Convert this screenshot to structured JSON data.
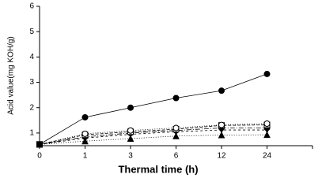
{
  "chart_data": {
    "type": "line",
    "x_label": "Thermal time (h)",
    "y_label": "Acid value(mg KOH/g)",
    "categories": [
      "0",
      "1",
      "3",
      "6",
      "12",
      "24"
    ],
    "ylim": [
      0.5,
      6
    ],
    "yticks": [
      1,
      2,
      3,
      4,
      5,
      6
    ],
    "series": [
      {
        "color": "#000000",
        "marker": "circle",
        "filled": true,
        "dash": "none",
        "values": [
          0.55,
          1.62,
          2.0,
          2.38,
          2.67,
          3.33
        ]
      },
      {
        "color": "#000000",
        "marker": "circle",
        "filled": false,
        "dash": "1,2",
        "values": [
          0.55,
          0.97,
          1.1,
          1.2,
          1.32,
          1.37
        ]
      },
      {
        "color": "#000000",
        "marker": "square",
        "filled": false,
        "dash": "4,2",
        "values": [
          0.55,
          0.93,
          1.05,
          1.15,
          1.3,
          1.32
        ]
      },
      {
        "color": "#000000",
        "marker": "circle",
        "filled": true,
        "dash": "6,2,1,2",
        "values": [
          0.55,
          0.85,
          1.0,
          1.1,
          1.2,
          1.2
        ]
      },
      {
        "color": "#000000",
        "marker": "triangle-down",
        "filled": true,
        "dash": "3,3",
        "values": [
          0.55,
          0.8,
          0.95,
          1.05,
          1.12,
          1.12
        ]
      },
      {
        "color": "#000000",
        "marker": "triangle-up",
        "filled": true,
        "dash": "1,2",
        "values": [
          0.55,
          0.68,
          0.78,
          0.88,
          0.92,
          0.93
        ]
      }
    ]
  }
}
